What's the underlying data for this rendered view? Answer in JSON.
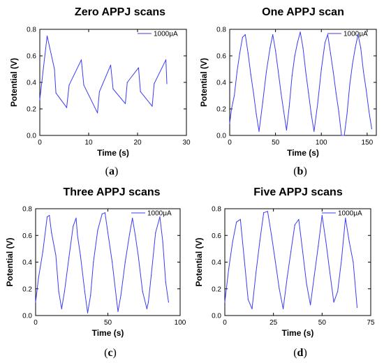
{
  "line_color": "#3b3bf5",
  "chart_data": [
    {
      "type": "line",
      "title": "Zero APPJ scans",
      "panel_label": "a",
      "xlabel": "Time (s)",
      "ylabel": "Potential (V)",
      "xlim": [
        0,
        30
      ],
      "ylim": [
        0.0,
        0.8
      ],
      "xticks": [
        0,
        10,
        20,
        30
      ],
      "yticks": [
        0.0,
        0.2,
        0.4,
        0.6,
        0.8
      ],
      "legend": "top-right",
      "series": [
        {
          "name": "1000μA",
          "x": [
            0,
            1.5,
            3.0,
            3.3,
            5.5,
            6.0,
            8.5,
            9.0,
            11.8,
            12.2,
            14.5,
            15.0,
            17.5,
            17.9,
            20.2,
            20.6,
            23.0,
            23.4,
            25.8,
            26.0
          ],
          "y": [
            0.27,
            0.75,
            0.5,
            0.32,
            0.21,
            0.38,
            0.57,
            0.38,
            0.17,
            0.33,
            0.53,
            0.35,
            0.24,
            0.4,
            0.51,
            0.33,
            0.22,
            0.39,
            0.57,
            0.39
          ]
        }
      ]
    },
    {
      "type": "line",
      "title": "One APPJ  scan",
      "panel_label": "b",
      "xlabel": "Time (s)",
      "ylabel": "Potential (V)",
      "xlim": [
        0,
        160
      ],
      "ylim": [
        0.0,
        0.8
      ],
      "xticks": [
        0,
        50,
        100,
        150
      ],
      "yticks": [
        0.0,
        0.2,
        0.4,
        0.6,
        0.8
      ],
      "legend": "top-right",
      "series": [
        {
          "name": "1000μA",
          "x": [
            0,
            2,
            5,
            8,
            11,
            14,
            17,
            20,
            23,
            26,
            29,
            32,
            36,
            40,
            44,
            47,
            50,
            53,
            56,
            59,
            62,
            65,
            68,
            71,
            74,
            77,
            80,
            83,
            86,
            89,
            92,
            96,
            100,
            104,
            107,
            110,
            113,
            116,
            119,
            122,
            125,
            128,
            131,
            134,
            137,
            140,
            143,
            146,
            149,
            152,
            155
          ],
          "y": [
            0.09,
            0.2,
            0.3,
            0.48,
            0.62,
            0.74,
            0.76,
            0.62,
            0.46,
            0.32,
            0.16,
            0.03,
            0.25,
            0.48,
            0.66,
            0.76,
            0.64,
            0.48,
            0.32,
            0.18,
            0.04,
            0.22,
            0.45,
            0.6,
            0.7,
            0.78,
            0.66,
            0.48,
            0.32,
            0.16,
            0.03,
            0.24,
            0.5,
            0.7,
            0.76,
            0.62,
            0.48,
            0.32,
            0.18,
            0.0,
            0.0,
            0.16,
            0.38,
            0.54,
            0.66,
            0.76,
            0.66,
            0.48,
            0.34,
            0.18,
            0.05
          ]
        }
      ]
    },
    {
      "type": "line",
      "title": "Three APPJ  scans",
      "panel_label": "c",
      "xlabel": "Time (s)",
      "ylabel": "Potential (V)",
      "xlim": [
        0,
        100
      ],
      "ylim": [
        0.0,
        0.8
      ],
      "xticks": [
        0,
        50,
        100
      ],
      "yticks": [
        0.0,
        0.2,
        0.4,
        0.6,
        0.8
      ],
      "legend": "top-right",
      "series": [
        {
          "name": "1000μA",
          "x": [
            0,
            2,
            5,
            8,
            9.5,
            11,
            14,
            16,
            18,
            20,
            23,
            26,
            28,
            29,
            31,
            34,
            36,
            38,
            40,
            43,
            46,
            48,
            50,
            53,
            56,
            57,
            59,
            62,
            65,
            67,
            69,
            71,
            74,
            77,
            78,
            80,
            83,
            86,
            88,
            90,
            92
          ],
          "y": [
            0.1,
            0.28,
            0.48,
            0.74,
            0.75,
            0.62,
            0.45,
            0.18,
            0.05,
            0.18,
            0.43,
            0.67,
            0.73,
            0.6,
            0.45,
            0.18,
            0.02,
            0.15,
            0.4,
            0.64,
            0.76,
            0.77,
            0.62,
            0.4,
            0.12,
            0.03,
            0.15,
            0.4,
            0.61,
            0.73,
            0.6,
            0.45,
            0.18,
            0.05,
            0.1,
            0.3,
            0.62,
            0.74,
            0.55,
            0.25,
            0.1
          ]
        }
      ]
    },
    {
      "type": "line",
      "title": "Five APPJ  scans",
      "panel_label": "d",
      "xlabel": "Time (s)",
      "ylabel": "Potential (V)",
      "xlim": [
        0,
        75
      ],
      "ylim": [
        0.0,
        0.8
      ],
      "xticks": [
        0,
        25,
        50,
        75
      ],
      "yticks": [
        0.0,
        0.2,
        0.4,
        0.6,
        0.8
      ],
      "legend": "top-right",
      "series": [
        {
          "name": "1000μA",
          "x": [
            0,
            2,
            4,
            6,
            8,
            10,
            12,
            14,
            16,
            18,
            20,
            22,
            24,
            26,
            28,
            30,
            32,
            34,
            36,
            38,
            40,
            42,
            44,
            46,
            48,
            50,
            52,
            54,
            56,
            58,
            60,
            62,
            64,
            66,
            68
          ],
          "y": [
            0.1,
            0.35,
            0.55,
            0.7,
            0.72,
            0.42,
            0.12,
            0.05,
            0.32,
            0.56,
            0.77,
            0.78,
            0.6,
            0.4,
            0.2,
            0.05,
            0.28,
            0.48,
            0.68,
            0.72,
            0.48,
            0.24,
            0.08,
            0.3,
            0.52,
            0.75,
            0.55,
            0.32,
            0.1,
            0.18,
            0.42,
            0.73,
            0.55,
            0.4,
            0.06
          ]
        }
      ]
    }
  ]
}
